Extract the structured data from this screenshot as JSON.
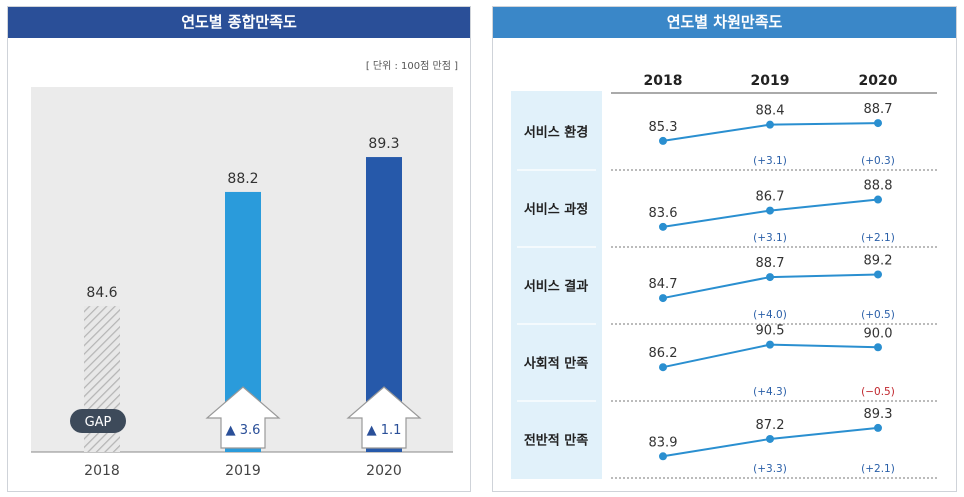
{
  "left_panel": {
    "title": "연도별 종합만족도",
    "unit_note": "[ 단위 : 100점 만점 ]",
    "gap_label": "GAP"
  },
  "right_panel": {
    "title": "연도별 차원만족도"
  },
  "colors": {
    "left_header": "#2a4f98",
    "right_header": "#3a87c8",
    "bar_2019": "#2a9bdb",
    "bar_2020": "#2659aa",
    "line": "#2a8fd0",
    "positive_change": "#2a5fa8",
    "negative_change": "#c0262d"
  },
  "chart_data": [
    {
      "type": "bar",
      "title": "연도별 종합만족도",
      "categories": [
        "2018",
        "2019",
        "2020"
      ],
      "values": [
        84.6,
        88.2,
        89.3
      ],
      "value_labels": [
        "84.6",
        "88.2",
        "89.3"
      ],
      "gaps": [
        null,
        "▲ 3.6",
        "▲ 1.1"
      ],
      "ylim": [
        80,
        90.5
      ]
    },
    {
      "type": "line",
      "title": "연도별 차원만족도",
      "years": [
        "2018",
        "2019",
        "2020"
      ],
      "ylim": [
        83,
        91
      ],
      "series": [
        {
          "name": "서비스 환경",
          "values": [
            85.3,
            88.4,
            88.7
          ],
          "labels": [
            "85.3",
            "88.4",
            "88.7"
          ],
          "changes": [
            "(+3.1)",
            "(+0.3)"
          ]
        },
        {
          "name": "서비스 과정",
          "values": [
            83.6,
            86.7,
            88.8
          ],
          "labels": [
            "83.6",
            "86.7",
            "88.8"
          ],
          "changes": [
            "(+3.1)",
            "(+2.1)"
          ]
        },
        {
          "name": "서비스 결과",
          "values": [
            84.7,
            88.7,
            89.2
          ],
          "labels": [
            "84.7",
            "88.7",
            "89.2"
          ],
          "changes": [
            "(+4.0)",
            "(+0.5)"
          ]
        },
        {
          "name": "사회적 만족",
          "values": [
            86.2,
            90.5,
            90.0
          ],
          "labels": [
            "86.2",
            "90.5",
            "90.0"
          ],
          "changes": [
            "(+4.3)",
            "(−0.5)"
          ]
        },
        {
          "name": "전반적 만족",
          "values": [
            83.9,
            87.2,
            89.3
          ],
          "labels": [
            "83.9",
            "87.2",
            "89.3"
          ],
          "changes": [
            "(+3.3)",
            "(+2.1)"
          ]
        }
      ]
    }
  ]
}
